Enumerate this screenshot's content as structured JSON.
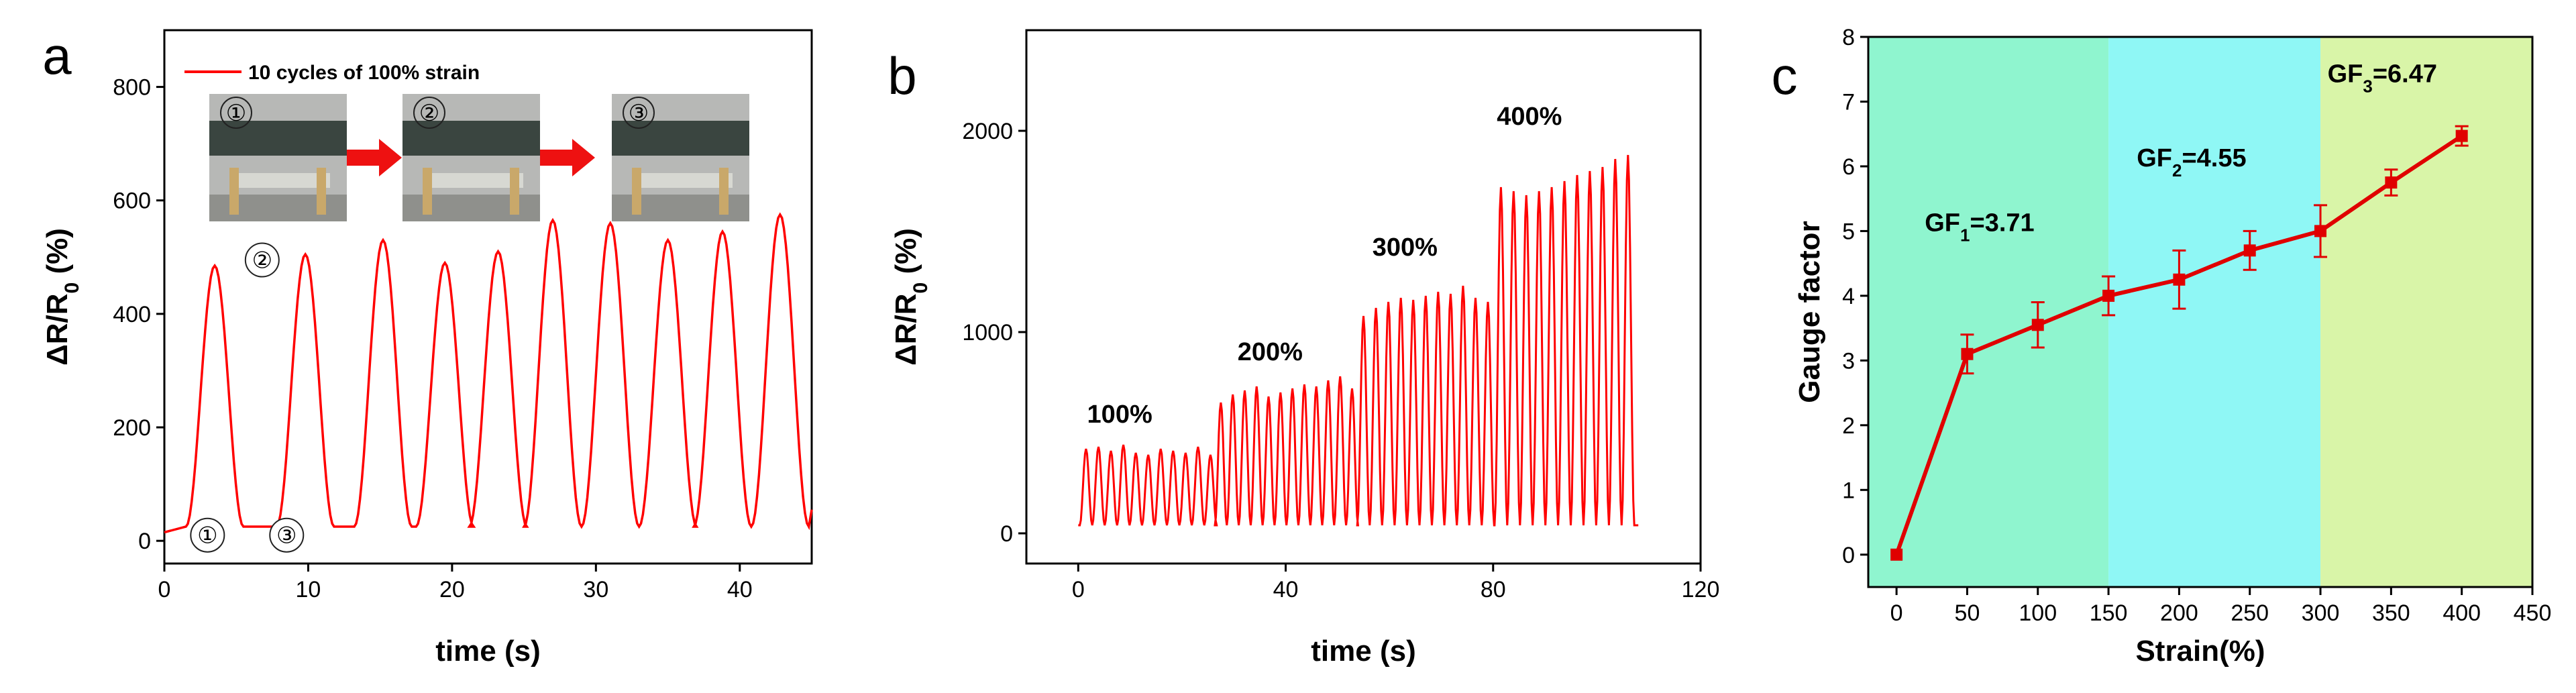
{
  "chart_data": [
    {
      "panel": "a",
      "type": "line",
      "xlabel": "time (s)",
      "ylabel_main": "ΔR/R",
      "ylabel_sub": "0",
      "ylabel_unit": " (%)",
      "xlim": [
        0,
        45
      ],
      "ylim": [
        -40,
        900
      ],
      "xticks": [
        0,
        10,
        20,
        30,
        40
      ],
      "yticks": [
        0,
        200,
        400,
        600,
        800
      ],
      "color": "#ff0000",
      "legend": "10 cycles of 100% strain",
      "cycle_peaks": [
        [
          3.5,
          485
        ],
        [
          9.8,
          505
        ],
        [
          15.2,
          530
        ],
        [
          19.5,
          490
        ],
        [
          23.2,
          510
        ],
        [
          27.0,
          565
        ],
        [
          31.0,
          560
        ],
        [
          35.0,
          530
        ],
        [
          38.8,
          545
        ],
        [
          42.8,
          575
        ]
      ],
      "cycle_width": 2.0,
      "baseline": 25,
      "circle_markers": [
        {
          "label": "①",
          "x": 3.0,
          "y": 10
        },
        {
          "label": "③",
          "x": 8.5,
          "y": 10
        },
        {
          "label": "②",
          "x": 6.8,
          "y": 495
        }
      ],
      "photo_labels": [
        "①",
        "②",
        "③"
      ]
    },
    {
      "panel": "b",
      "type": "line",
      "xlabel": "time (s)",
      "ylabel_main": "ΔR/R",
      "ylabel_sub": "0",
      "ylabel_unit": " (%)",
      "xlim": [
        -10,
        120
      ],
      "ylim": [
        -150,
        2500
      ],
      "xticks": [
        0,
        40,
        80,
        120
      ],
      "yticks": [
        0,
        1000,
        2000
      ],
      "color": "#ff0000",
      "segments": [
        {
          "label": "100%",
          "start": 1.5,
          "count": 11,
          "period": 2.4,
          "peaks": [
            420,
            430,
            410,
            440,
            400,
            390,
            420,
            410,
            400,
            430,
            390
          ],
          "label_pos": [
            8,
            550
          ]
        },
        {
          "label": "200%",
          "start": 27.5,
          "count": 12,
          "period": 2.3,
          "peaks": [
            650,
            690,
            710,
            730,
            680,
            700,
            720,
            740,
            730,
            760,
            780,
            720
          ],
          "label_pos": [
            37,
            860
          ]
        },
        {
          "label": "300%",
          "start": 55.0,
          "count": 11,
          "period": 2.4,
          "peaks": [
            1080,
            1120,
            1150,
            1170,
            1160,
            1180,
            1200,
            1190,
            1230,
            1170,
            1150
          ],
          "label_pos": [
            63,
            1380
          ]
        },
        {
          "label": "400%",
          "start": 81.5,
          "count": 11,
          "period": 2.45,
          "peaks": [
            1720,
            1700,
            1680,
            1700,
            1720,
            1750,
            1780,
            1800,
            1820,
            1860,
            1880
          ],
          "label_pos": [
            87,
            2030
          ]
        }
      ],
      "baseline": 40,
      "x_end": 108
    },
    {
      "panel": "c",
      "type": "line",
      "xlabel": "Strain(%)",
      "ylabel": "Gauge factor",
      "xlim": [
        -20,
        450
      ],
      "ylim": [
        -0.5,
        8
      ],
      "xticks": [
        0,
        50,
        100,
        150,
        200,
        250,
        300,
        350,
        400,
        450
      ],
      "yticks": [
        0,
        1,
        2,
        3,
        4,
        5,
        6,
        7,
        8
      ],
      "color": "#e00000",
      "x": [
        0,
        50,
        100,
        150,
        200,
        250,
        300,
        350,
        400
      ],
      "y": [
        0,
        3.1,
        3.55,
        4.0,
        4.25,
        4.7,
        5.0,
        5.75,
        6.47
      ],
      "err": [
        0,
        0.3,
        0.35,
        0.3,
        0.45,
        0.3,
        0.4,
        0.2,
        0.15
      ],
      "regions": [
        {
          "x0": -20,
          "x1": 150,
          "color": "#8ff5cf"
        },
        {
          "x0": 150,
          "x1": 300,
          "color": "#8ff7f5"
        },
        {
          "x0": 300,
          "x1": 450,
          "color": "#d9f5a8"
        }
      ],
      "annotations": [
        {
          "main": "GF",
          "sub": "1",
          "value": "=3.71",
          "x": 20,
          "y": 5.0
        },
        {
          "main": "GF",
          "sub": "2",
          "value": "=4.55",
          "x": 170,
          "y": 6.0
        },
        {
          "main": "GF",
          "sub": "3",
          "value": "=6.47",
          "x": 305,
          "y": 7.3
        }
      ]
    }
  ]
}
